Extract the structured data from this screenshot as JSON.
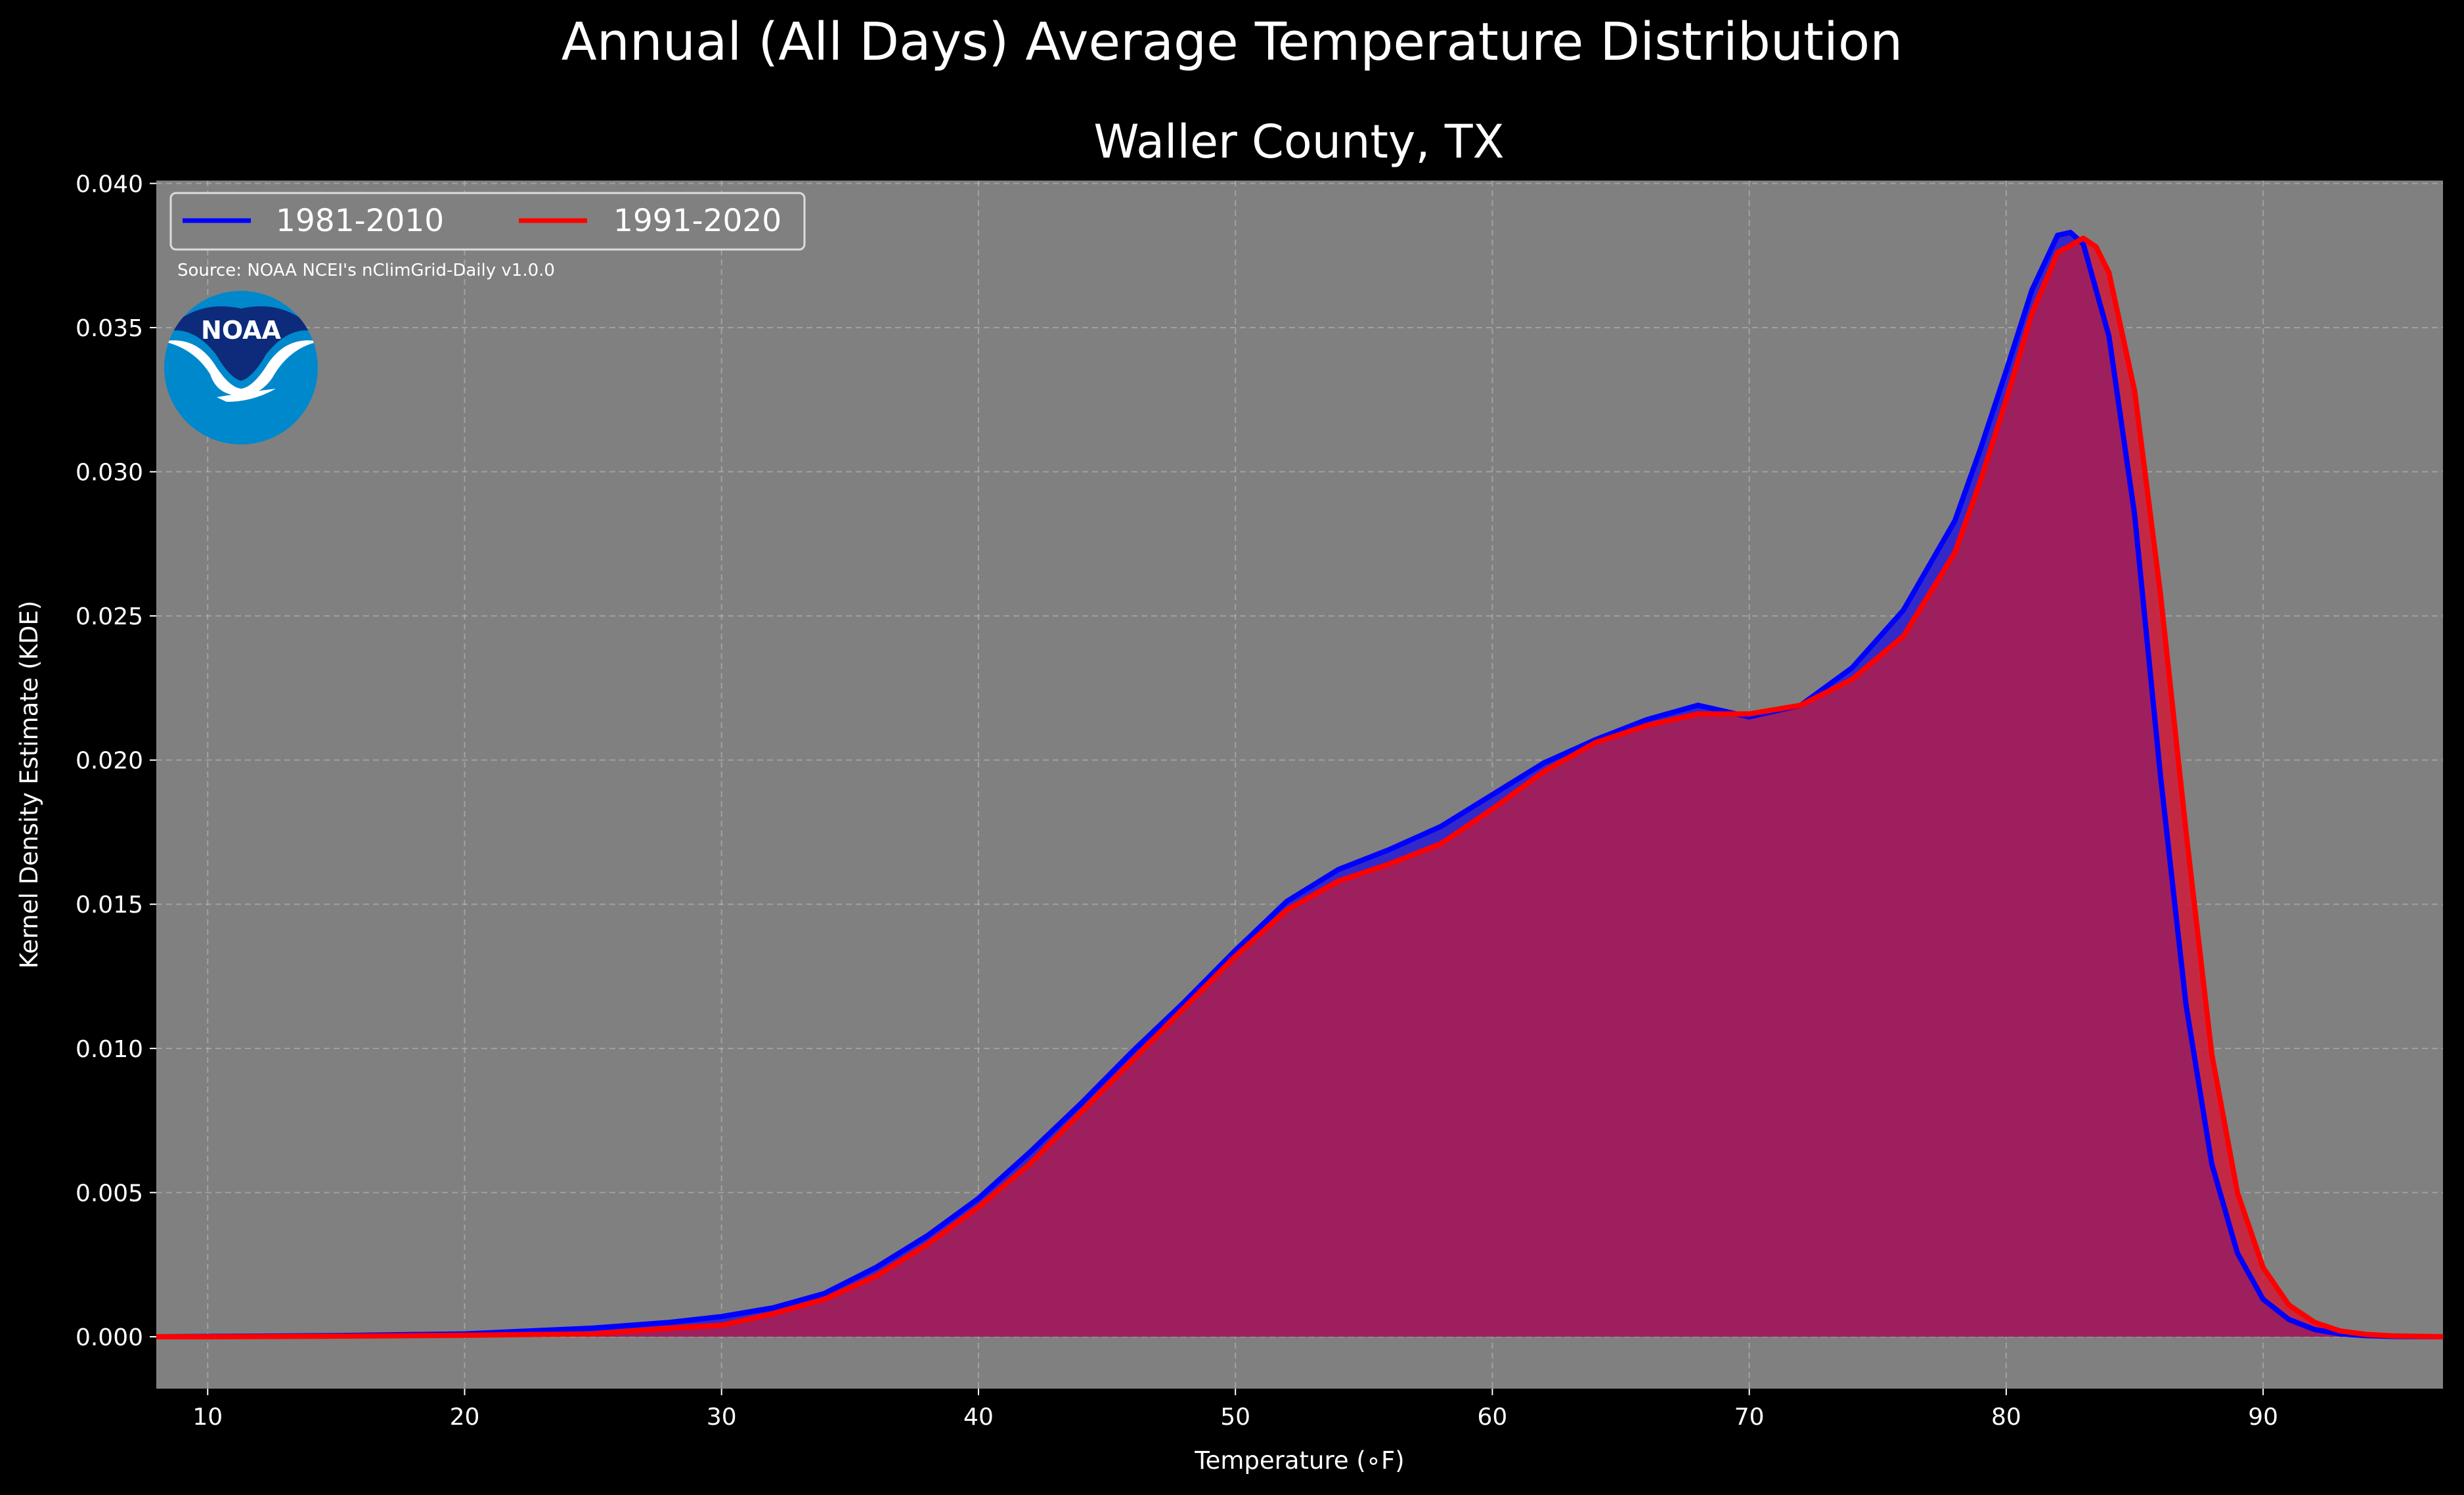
{
  "chart_data": {
    "type": "area",
    "suptitle": "Annual (All Days) Average Temperature Distribution",
    "title": "Waller County, TX",
    "xlabel": "Temperature (∘F)",
    "ylabel": "Kernel Density Estimate (KDE)",
    "xlim": [
      8,
      97
    ],
    "ylim": [
      -0.0018,
      0.0401
    ],
    "xticks": [
      10,
      20,
      30,
      40,
      50,
      60,
      70,
      80,
      90
    ],
    "yticks": [
      "0.000",
      "0.005",
      "0.010",
      "0.015",
      "0.020",
      "0.025",
      "0.030",
      "0.035",
      "0.040"
    ],
    "grid": true,
    "legend_position": "upper-left",
    "source_note": "Source: NOAA NCEI's nClimGrid-Daily v1.0.0",
    "logo_text": "NOAA",
    "colors": {
      "background": "#000000",
      "axes_face": "#808080",
      "series1": "#0000ff",
      "series2": "#ff0000",
      "overlap_fill": "#9e1f5e"
    },
    "series": [
      {
        "name": "1981-2010",
        "color": "#0000ff",
        "x": [
          8,
          10,
          15,
          20,
          25,
          28,
          30,
          32,
          34,
          36,
          38,
          40,
          42,
          44,
          46,
          48,
          50,
          52,
          54,
          56,
          58,
          60,
          62,
          64,
          66,
          68,
          70,
          72,
          74,
          76,
          78,
          79,
          80,
          81,
          82,
          82.5,
          83,
          84,
          85,
          86,
          87,
          88,
          89,
          90,
          91,
          92,
          93,
          94,
          95,
          97
        ],
        "y": [
          0.0,
          1e-05,
          4e-05,
          0.0001,
          0.0003,
          0.0005,
          0.0007,
          0.001,
          0.0015,
          0.0024,
          0.0035,
          0.0048,
          0.0064,
          0.0081,
          0.0099,
          0.0116,
          0.0134,
          0.0151,
          0.0162,
          0.0169,
          0.0177,
          0.0188,
          0.0199,
          0.0207,
          0.0214,
          0.0219,
          0.0215,
          0.0219,
          0.0232,
          0.0252,
          0.0283,
          0.0308,
          0.0335,
          0.0363,
          0.0382,
          0.0383,
          0.0379,
          0.0347,
          0.0285,
          0.0195,
          0.0115,
          0.006,
          0.0029,
          0.0013,
          0.0006,
          0.00025,
          0.0001,
          4e-05,
          1e-05,
          0.0
        ]
      },
      {
        "name": "1991-2020",
        "color": "#ff0000",
        "x": [
          8,
          10,
          15,
          20,
          25,
          28,
          30,
          32,
          34,
          36,
          38,
          40,
          42,
          44,
          46,
          48,
          50,
          52,
          54,
          56,
          58,
          60,
          62,
          64,
          66,
          68,
          70,
          72,
          74,
          76,
          78,
          79,
          80,
          81,
          82,
          83,
          83.5,
          84,
          85,
          86,
          87,
          88,
          89,
          90,
          91,
          92,
          93,
          94,
          95,
          97
        ],
        "y": [
          0.0,
          0.0,
          2e-05,
          5e-05,
          0.0001,
          0.0003,
          0.0004,
          0.0008,
          0.0013,
          0.0021,
          0.0032,
          0.0045,
          0.006,
          0.0078,
          0.0096,
          0.0114,
          0.0132,
          0.0148,
          0.0158,
          0.0164,
          0.0171,
          0.0183,
          0.0196,
          0.0206,
          0.0212,
          0.0216,
          0.0216,
          0.0219,
          0.0228,
          0.0243,
          0.0272,
          0.0297,
          0.0325,
          0.0355,
          0.0376,
          0.0381,
          0.0378,
          0.0369,
          0.0328,
          0.0258,
          0.0175,
          0.0098,
          0.005,
          0.0024,
          0.0011,
          0.0005,
          0.0002,
          8e-05,
          3e-05,
          0.0
        ]
      }
    ]
  }
}
